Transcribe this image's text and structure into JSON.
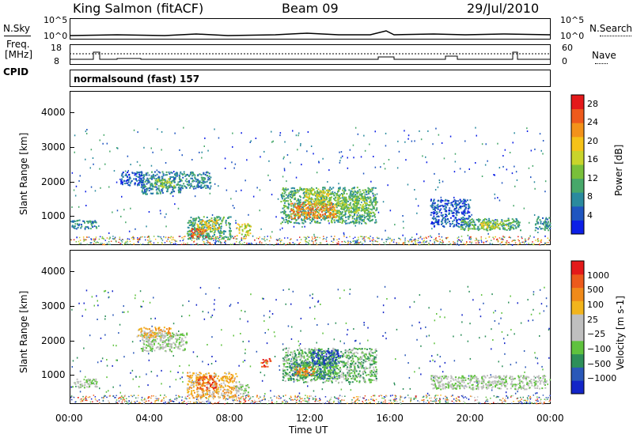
{
  "header": {
    "station": "King Salmon (fitACF)",
    "beam": "Beam 09",
    "date": "29/Jul/2010"
  },
  "side_labels": {
    "nsky": "N.Sky",
    "nsearch": "N.Search",
    "freq_line1": "Freq.",
    "freq_line2": "[MHz]",
    "nave": "Nave",
    "cpid": "CPID",
    "nsky_nsearch_ticks": [
      "10^5",
      "10^0"
    ],
    "freq_ticks": [
      "18",
      "8"
    ],
    "nave_ticks": [
      "60",
      "0"
    ]
  },
  "cpid_text": "normalsound (fast) 157",
  "x_axis": {
    "label": "Time UT",
    "ticks": [
      "00:00",
      "04:00",
      "08:00",
      "12:00",
      "16:00",
      "20:00",
      "00:00"
    ]
  },
  "chart_data": [
    {
      "type": "heatmap",
      "name": "power",
      "ylabel": "Slant Range [km]",
      "ylim": [
        180,
        4600
      ],
      "yticks": [
        "1000",
        "2000",
        "3000",
        "4000"
      ],
      "xlim_hours": [
        0,
        24
      ],
      "colorbar": {
        "label": "Power [dB]",
        "ticks": [
          "4",
          "8",
          "12",
          "16",
          "20",
          "24",
          "28"
        ],
        "colors": [
          "#0c1fe6",
          "#1f55c0",
          "#2a8a9e",
          "#47a86a",
          "#79c03a",
          "#c9d42b",
          "#f5c218",
          "#f3921a",
          "#ee5a1c",
          "#e4191a"
        ]
      },
      "regions": [
        {
          "t0": 0.0,
          "t1": 1.3,
          "r0": 650,
          "r1": 900,
          "level": 2
        },
        {
          "t0": 3.5,
          "t1": 5.5,
          "r0": 1650,
          "r1": 2300,
          "level": 2
        },
        {
          "t0": 4.2,
          "t1": 5.2,
          "r0": 1850,
          "r1": 2100,
          "level": 4
        },
        {
          "t0": 5.5,
          "t1": 7.0,
          "r0": 1800,
          "r1": 2300,
          "level": 2
        },
        {
          "t0": 2.5,
          "t1": 3.6,
          "r0": 1900,
          "r1": 2300,
          "level": 1
        },
        {
          "t0": 5.8,
          "t1": 8.0,
          "r0": 350,
          "r1": 1000,
          "level": 3
        },
        {
          "t0": 6.3,
          "t1": 7.4,
          "r0": 600,
          "r1": 900,
          "level": 6
        },
        {
          "t0": 6.0,
          "t1": 6.8,
          "r0": 400,
          "r1": 650,
          "level": 8
        },
        {
          "t0": 8.3,
          "t1": 9.0,
          "r0": 450,
          "r1": 800,
          "level": 5
        },
        {
          "t0": 10.5,
          "t1": 15.3,
          "r0": 800,
          "r1": 1850,
          "level": 3
        },
        {
          "t0": 11.0,
          "t1": 13.3,
          "r0": 950,
          "r1": 1400,
          "level": 7
        },
        {
          "t0": 11.7,
          "t1": 13.0,
          "r0": 1350,
          "r1": 1800,
          "level": 5
        },
        {
          "t0": 13.3,
          "t1": 15.0,
          "r0": 1100,
          "r1": 1600,
          "level": 4
        },
        {
          "t0": 18.0,
          "t1": 20.0,
          "r0": 700,
          "r1": 1500,
          "level": 1
        },
        {
          "t0": 19.5,
          "t1": 22.5,
          "r0": 600,
          "r1": 950,
          "level": 3
        },
        {
          "t0": 20.5,
          "t1": 21.8,
          "r0": 650,
          "r1": 850,
          "level": 5
        },
        {
          "t0": 23.2,
          "t1": 24.0,
          "r0": 600,
          "r1": 1000,
          "level": 2
        }
      ]
    },
    {
      "type": "heatmap",
      "name": "velocity",
      "ylabel": "Slant Range [km]",
      "ylim": [
        180,
        4600
      ],
      "yticks": [
        "1000",
        "2000",
        "3000",
        "4000"
      ],
      "xlim_hours": [
        0,
        24
      ],
      "colorbar": {
        "label": "Velocity [m s-1]",
        "ticks": [
          "1000",
          "500",
          "100",
          "25",
          "−25",
          "−100",
          "−500",
          "−1000"
        ],
        "colors": [
          "#1325c8",
          "#2a58b8",
          "#2d8f5a",
          "#5fc23e",
          "#bfbfbf",
          "#bfbfbf",
          "#f2b41c",
          "#f08a1a",
          "#ec5a1c",
          "#e4191a"
        ]
      },
      "regions": [
        {
          "t0": 0.0,
          "t1": 1.3,
          "r0": 650,
          "r1": 900,
          "level": 4
        },
        {
          "t0": 3.5,
          "t1": 5.8,
          "r0": 1700,
          "r1": 2250,
          "level": 4
        },
        {
          "t0": 3.3,
          "t1": 5.0,
          "r0": 2100,
          "r1": 2400,
          "level": 6
        },
        {
          "t0": 5.8,
          "t1": 8.3,
          "r0": 350,
          "r1": 1100,
          "level": 6
        },
        {
          "t0": 6.3,
          "t1": 7.3,
          "r0": 600,
          "r1": 1000,
          "level": 8
        },
        {
          "t0": 8.2,
          "t1": 8.9,
          "r0": 450,
          "r1": 750,
          "level": 4
        },
        {
          "t0": 10.6,
          "t1": 15.3,
          "r0": 800,
          "r1": 1800,
          "level": 3
        },
        {
          "t0": 11.0,
          "t1": 13.3,
          "r0": 900,
          "r1": 1400,
          "level": 2
        },
        {
          "t0": 12.0,
          "t1": 13.5,
          "r0": 1300,
          "r1": 1750,
          "level": 1
        },
        {
          "t0": 11.2,
          "t1": 12.2,
          "r0": 1000,
          "r1": 1250,
          "level": 7
        },
        {
          "t0": 18.0,
          "t1": 23.8,
          "r0": 600,
          "r1": 1000,
          "level": 4
        },
        {
          "t0": 9.5,
          "t1": 10.0,
          "r0": 1250,
          "r1": 1500,
          "level": 8
        }
      ]
    }
  ]
}
